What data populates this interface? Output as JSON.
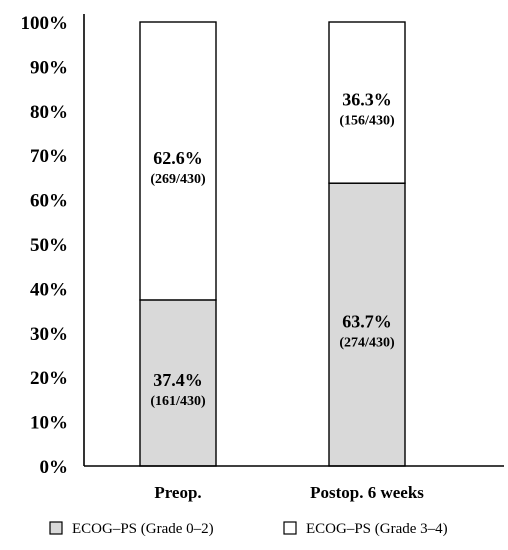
{
  "chart_data": {
    "type": "bar",
    "stacked": true,
    "categories": [
      "Preop.",
      "Postop. 6 weeks"
    ],
    "series": [
      {
        "name": "ECOG–PS (Grade 0–2)",
        "values": [
          37.4,
          63.7
        ],
        "labels": [
          "37.4%",
          "63.7%"
        ],
        "counts": [
          "(161/430)",
          "(274/430)"
        ],
        "color": "#d9d9d9"
      },
      {
        "name": "ECOG–PS (Grade 3–4)",
        "values": [
          62.6,
          36.3
        ],
        "labels": [
          "62.6%",
          "36.3%"
        ],
        "counts": [
          "(269/430)",
          "(156/430)"
        ],
        "color": "#ffffff"
      }
    ],
    "ylim": [
      0,
      100
    ],
    "yticks": [
      "0%",
      "10%",
      "20%",
      "30%",
      "40%",
      "50%",
      "60%",
      "70%",
      "80%",
      "90%",
      "100%"
    ],
    "grid": false,
    "legend_position": "bottom"
  }
}
